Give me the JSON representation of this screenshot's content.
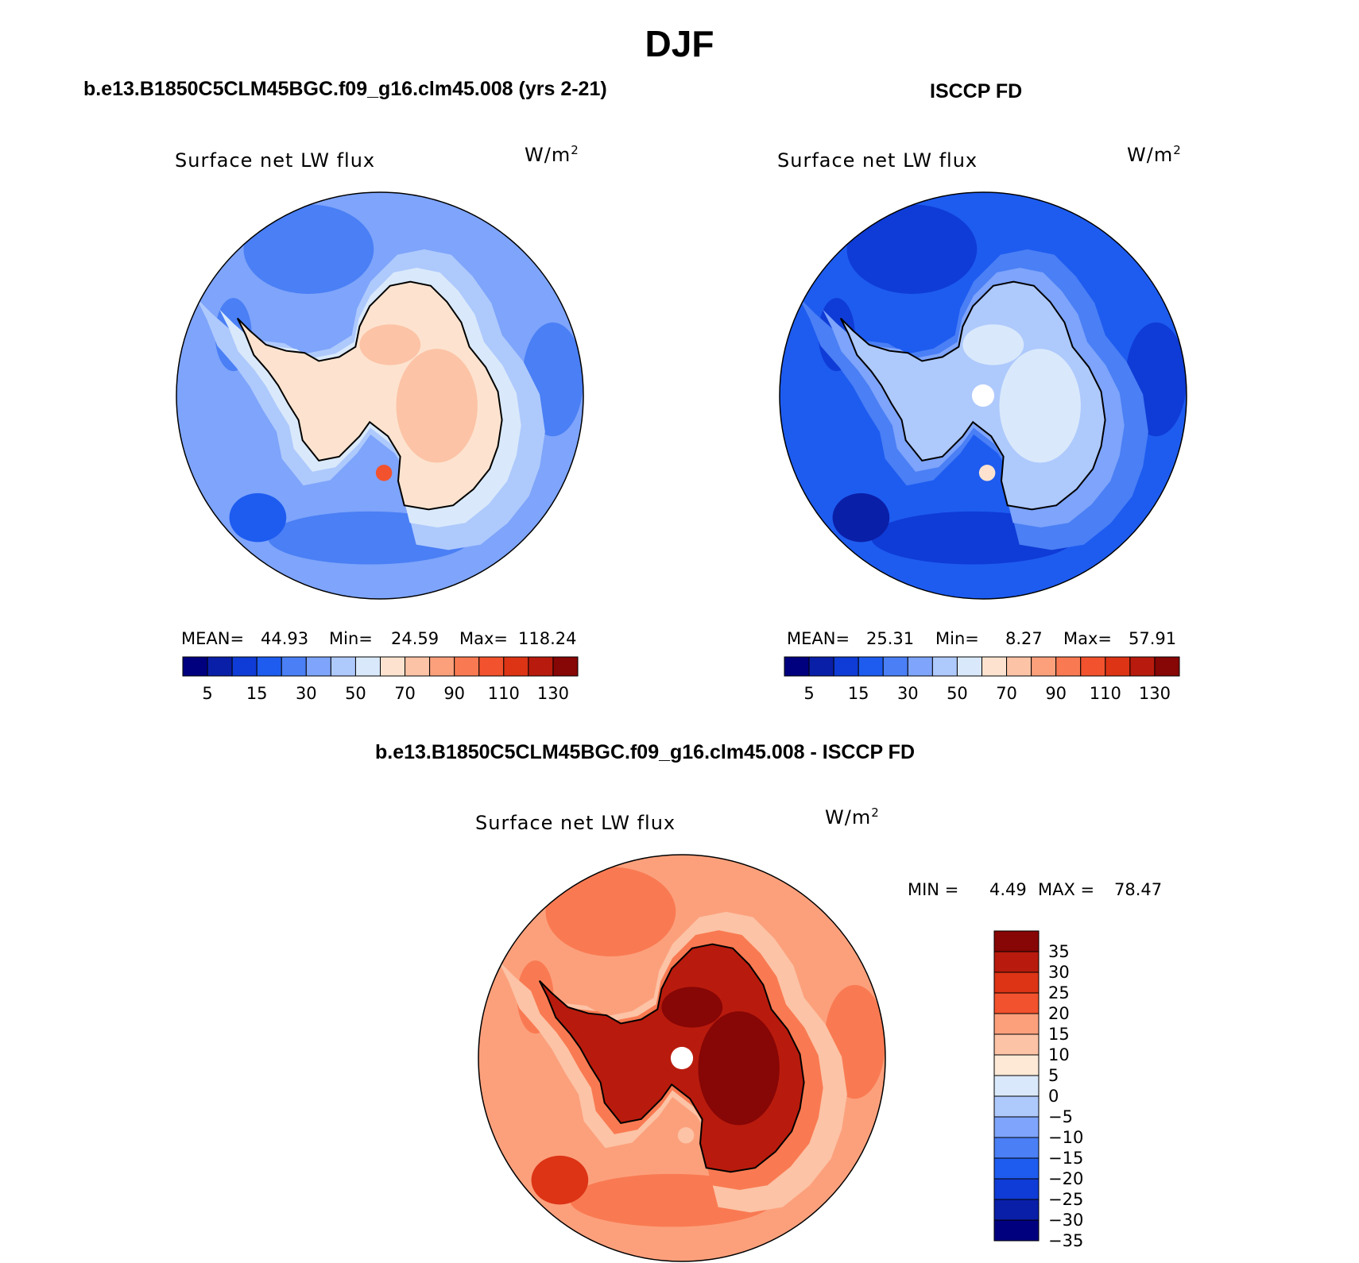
{
  "title": "DJF",
  "panels": {
    "model": {
      "caption": "b.e13.B1850C5CLM45BGC.f09_g16.clm45.008 (yrs 2-21)",
      "field": "Surface net LW flux",
      "units": "W/m",
      "units_exp": "2",
      "stats": {
        "mean_label": "MEAN=",
        "mean": "44.93",
        "min_label": "Min=",
        "min": "24.59",
        "max_label": "Max=",
        "max": "118.24"
      }
    },
    "obs": {
      "caption": "ISCCP FD",
      "field": "Surface net LW flux",
      "units": "W/m",
      "units_exp": "2",
      "stats": {
        "mean_label": "MEAN=",
        "mean": "25.31",
        "min_label": "Min=",
        "min": "8.27",
        "max_label": "Max=",
        "max": "57.91"
      }
    },
    "diff": {
      "caption": "b.e13.B1850C5CLM45BGC.f09_g16.clm45.008 - ISCCP FD",
      "field": "Surface net LW flux",
      "units": "W/m",
      "units_exp": "2",
      "stats": {
        "min_label": "MIN =",
        "min": "4.49",
        "max_label": "MAX =",
        "max": "78.47"
      }
    }
  },
  "colorbars": {
    "abs": {
      "colors": [
        "#00007f",
        "#0a1fa8",
        "#0f3cd6",
        "#1e5cf0",
        "#4a7ff5",
        "#7ea4fb",
        "#aec9fc",
        "#d9e9fb",
        "#fde3cf",
        "#fcc3a6",
        "#fca07c",
        "#f97a52",
        "#f2522d",
        "#dc3415",
        "#b81b0d",
        "#870606"
      ],
      "labels": [
        "5",
        "15",
        "30",
        "50",
        "70",
        "90",
        "110",
        "130"
      ]
    },
    "diff": {
      "colors": [
        "#870606",
        "#b81b0d",
        "#dc3415",
        "#f2522d",
        "#fca07c",
        "#fcc3a6",
        "#fde9d6",
        "#d9e9fb",
        "#aec9fc",
        "#7ea4fb",
        "#4a7ff5",
        "#1e5cf0",
        "#0f3cd6",
        "#0a1fa8",
        "#00007f"
      ],
      "labels": [
        "35",
        "30",
        "25",
        "20",
        "15",
        "10",
        "5",
        "0",
        "−5",
        "−10",
        "−15",
        "−20",
        "−25",
        "−30",
        "−35"
      ]
    }
  },
  "maps": {
    "model": {
      "ocean": "#7ea4fb",
      "mid": "#aec9fc",
      "inner": "#d9e9fb",
      "land": "#fde3cf",
      "patch": "#fcc3a6",
      "hot": "#f2522d",
      "dark": "#4a7ff5",
      "darker": "#1e5cf0"
    },
    "obs": {
      "ocean": "#1e5cf0",
      "mid": "#4a7ff5",
      "inner": "#7ea4fb",
      "land": "#aec9fc",
      "patch": "#d9e9fb",
      "hot": "#fde3cf",
      "dark": "#0f3cd6",
      "darker": "#0a1fa8"
    },
    "diff": {
      "ocean": "#fca07c",
      "mid": "#fcc3a6",
      "inner": "#f97a52",
      "land": "#b81b0d",
      "patch": "#870606",
      "hot": "#fcc3a6",
      "dark": "#f97a52",
      "darker": "#dc3415"
    }
  }
}
